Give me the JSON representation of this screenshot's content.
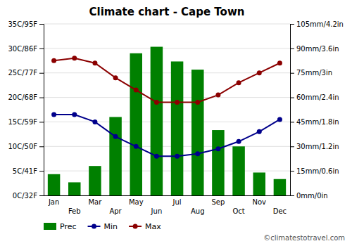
{
  "chart_data": {
    "type": "bar",
    "title": "Climate chart - Cape Town",
    "categories": [
      "Jan",
      "Feb",
      "Mar",
      "Apr",
      "May",
      "Jun",
      "Jul",
      "Aug",
      "Sep",
      "Oct",
      "Nov",
      "Dec"
    ],
    "series": [
      {
        "name": "Prec",
        "type": "bar",
        "axis": "y2",
        "color": "#008000",
        "values": [
          13,
          8,
          18,
          48,
          87,
          91,
          82,
          77,
          40,
          30,
          14,
          10
        ]
      },
      {
        "name": "Min",
        "type": "line",
        "marker": "circle",
        "color": "#00008B",
        "values": [
          16.5,
          16.5,
          15,
          12,
          10,
          8,
          8,
          8.5,
          9.5,
          11,
          13,
          15.5
        ]
      },
      {
        "name": "Max",
        "type": "line",
        "marker": "circle",
        "color": "#8B0000",
        "values": [
          27.5,
          28,
          27,
          24,
          21.5,
          19,
          19,
          19,
          20.5,
          23,
          25,
          27
        ]
      }
    ],
    "ylim": [
      0,
      35
    ],
    "yticks": [
      {
        "value": 0,
        "label": "0C/32F"
      },
      {
        "value": 5,
        "label": "5C/41F"
      },
      {
        "value": 10,
        "label": "10C/50F"
      },
      {
        "value": 15,
        "label": "15C/59F"
      },
      {
        "value": 20,
        "label": "20C/68F"
      },
      {
        "value": 25,
        "label": "25C/77F"
      },
      {
        "value": 30,
        "label": "30C/86F"
      },
      {
        "value": 35,
        "label": "35C/95F"
      }
    ],
    "y2lim": [
      0,
      105
    ],
    "y2ticks": [
      {
        "value": 0,
        "label": "0mm/0in"
      },
      {
        "value": 15,
        "label": "15mm/0.6in"
      },
      {
        "value": 30,
        "label": "30mm/1.2in"
      },
      {
        "value": 45,
        "label": "45mm/1.8in"
      },
      {
        "value": 60,
        "label": "60mm/2.4in"
      },
      {
        "value": 75,
        "label": "75mm/3in"
      },
      {
        "value": 90,
        "label": "90mm/3.6in"
      },
      {
        "value": 105,
        "label": "105mm/4.2in"
      }
    ],
    "grid": true,
    "legend": "bottom",
    "annotations": [
      "©climatestotravel.com"
    ]
  }
}
